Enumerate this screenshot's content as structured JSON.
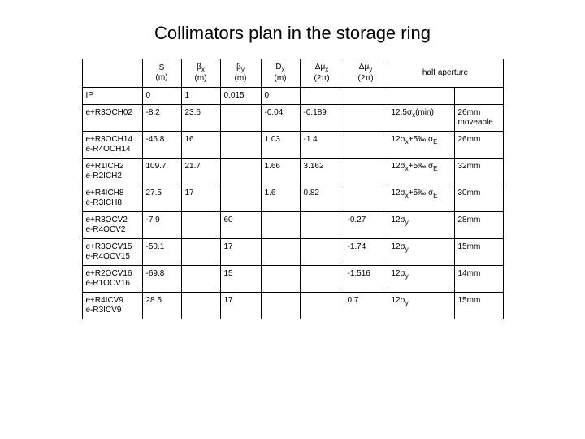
{
  "title": "Collimators plan in the storage ring",
  "headers": {
    "h0": "",
    "h1_l1": "S",
    "h1_l2": "(m)",
    "h2_l1": "βx",
    "h2_l2": "(m)",
    "h3_l1": "βy",
    "h3_l2": "(m)",
    "h4_l1": "Dx",
    "h4_l2": "(m)",
    "h5_l1": "Δμx",
    "h5_l2": "(2π)",
    "h6_l1": "Δμy",
    "h6_l2": "(2π)",
    "h7": "half aperture"
  },
  "rows": [
    {
      "c0": "IP",
      "c1": "0",
      "c2": "1",
      "c3": "0.015",
      "c4": "0",
      "c5": "",
      "c6": "",
      "c7": "",
      "c8": ""
    },
    {
      "c0": "e+R3OCH02",
      "c1": "-8.2",
      "c2": "23.6",
      "c3": "",
      "c4": "-0.04",
      "c5": "-0.189",
      "c6": "",
      "c7": "12.5σx(min)",
      "c8": "26mm moveable"
    },
    {
      "c0": "e+R3OCH14 e-R4OCH14",
      "c1": "-46.8",
      "c2": "16",
      "c3": "",
      "c4": "1.03",
      "c5": "-1.4",
      "c6": "",
      "c7": "12σx+5‰ σE",
      "c8": "26mm"
    },
    {
      "c0": "e+R1ICH2 e-R2ICH2",
      "c1": "109.7",
      "c2": "21.7",
      "c3": "",
      "c4": "1.66",
      "c5": "3.162",
      "c6": "",
      "c7": "12σx+5‰ σE",
      "c8": "32mm"
    },
    {
      "c0": "e+R4ICH8 e-R3ICH8",
      "c1": "27.5",
      "c2": "17",
      "c3": "",
      "c4": "1.6",
      "c5": "0.82",
      "c6": "",
      "c7": "12σx+5‰ σE",
      "c8": "30mm"
    },
    {
      "c0": "e+R3OCV2 e-R4OCV2",
      "c1": "-7.9",
      "c2": "",
      "c3": "60",
      "c4": "",
      "c5": "",
      "c6": "-0.27",
      "c7": "12σy",
      "c8": "28mm"
    },
    {
      "c0": "e+R3OCV15 e-R4OCV15",
      "c1": "-50.1",
      "c2": "",
      "c3": "17",
      "c4": "",
      "c5": "",
      "c6": "-1.74",
      "c7": "12σy",
      "c8": "15mm"
    },
    {
      "c0": "e+R2OCV16 e-R1OCV16",
      "c1": "-69.8",
      "c2": "",
      "c3": "15",
      "c4": "",
      "c5": "",
      "c6": "-1.516",
      "c7": "12σy",
      "c8": "14mm"
    },
    {
      "c0": "e+R4ICV9 e-R3ICV9",
      "c1": "28.5",
      "c2": "",
      "c3": "17",
      "c4": "",
      "c5": "",
      "c6": "0.7",
      "c7": "12σy",
      "c8": "15mm"
    }
  ]
}
